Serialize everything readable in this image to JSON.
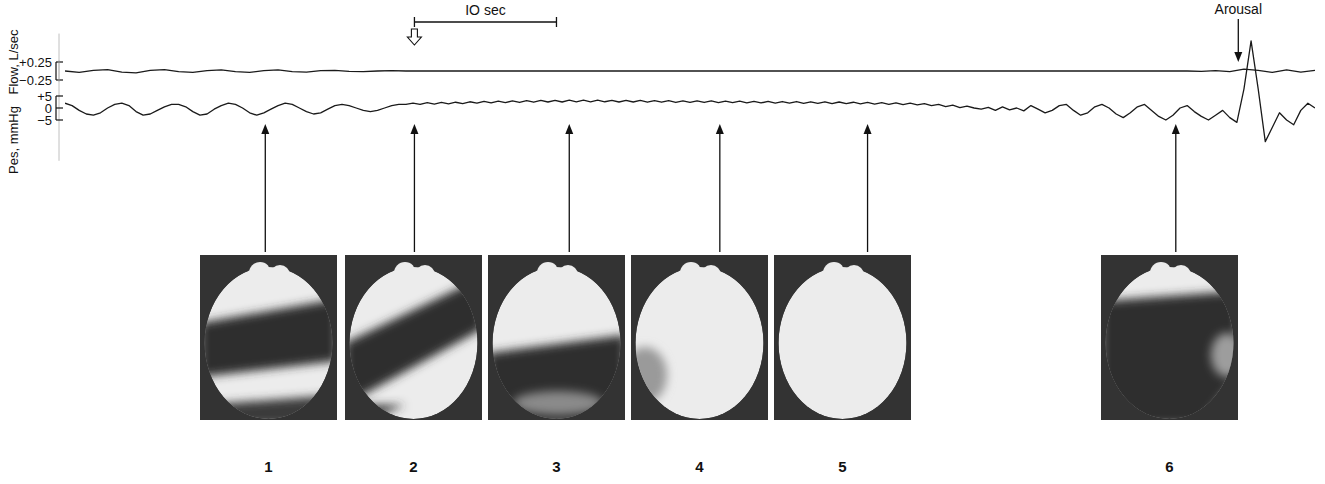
{
  "chart_data": [
    {
      "type": "line",
      "y_label": "Flow, L/sec",
      "color": "#1a1a1a",
      "grid": false,
      "tick_labels": "y",
      "xlim": [
        0,
        88
      ],
      "ylim": [
        -0.3,
        0.3
      ],
      "yticks": [
        {
          "value": 0.25,
          "label": "+0.25"
        },
        {
          "value": -0.25,
          "label": "−0.25"
        }
      ],
      "x": [
        0,
        1,
        2,
        3,
        4,
        5,
        6,
        7,
        8,
        9,
        10,
        11,
        12,
        13,
        14,
        15,
        16,
        17,
        18,
        19,
        20,
        21,
        22,
        23,
        24,
        40,
        60,
        79,
        80,
        81,
        82,
        83,
        84,
        85,
        86,
        87,
        88
      ],
      "values": [
        0,
        -0.04,
        0.02,
        0.04,
        -0.03,
        -0.05,
        0.02,
        0.04,
        -0.02,
        -0.04,
        0.01,
        0.03,
        -0.02,
        -0.04,
        0.01,
        0.03,
        -0.02,
        -0.03,
        0.01,
        0.02,
        -0.01,
        -0.02,
        0,
        0.01,
        0,
        0,
        0,
        0,
        -0.01,
        0.01,
        -0.02,
        0.05,
        0.02,
        -0.04,
        0.03,
        -0.03,
        0.02
      ]
    },
    {
      "type": "line",
      "y_label": "Pes, mmHg",
      "color": "#1a1a1a",
      "grid": false,
      "tick_labels": "y",
      "xlim": [
        0,
        88
      ],
      "ylim": [
        -22,
        31
      ],
      "yticks": [
        {
          "value": 5,
          "label": "+5"
        },
        0,
        {
          "value": -5,
          "label": "−5"
        }
      ],
      "x": [
        0,
        0.5,
        1,
        1.5,
        2,
        2.5,
        3,
        3.5,
        4,
        4.5,
        5,
        5.5,
        6,
        6.5,
        7,
        7.5,
        8,
        8.5,
        9,
        9.5,
        10,
        10.5,
        11,
        11.5,
        12,
        12.5,
        13,
        13.5,
        14,
        14.5,
        15,
        15.5,
        16,
        16.5,
        17,
        17.5,
        18,
        18.5,
        19,
        19.5,
        20,
        20.5,
        21,
        21.5,
        22,
        22.5,
        23,
        23.5,
        24,
        24.5,
        25,
        25.5,
        26,
        26.5,
        27,
        27.5,
        28,
        28.5,
        29,
        29.5,
        30,
        30.5,
        31,
        31.5,
        32,
        32.5,
        33,
        33.5,
        34,
        34.5,
        35,
        35.5,
        36,
        36.5,
        37,
        37.5,
        38,
        38.5,
        39,
        39.5,
        40,
        40.5,
        41,
        41.5,
        42,
        42.5,
        43,
        43.5,
        44,
        44.5,
        45,
        45.5,
        46,
        46.5,
        47,
        47.5,
        48,
        48.5,
        49,
        49.5,
        50,
        50.5,
        51,
        51.5,
        52,
        52.5,
        53,
        53.5,
        54,
        54.5,
        55,
        55.5,
        56,
        56.5,
        57,
        57.5,
        58,
        58.5,
        59,
        59.5,
        60,
        60.5,
        61,
        61.5,
        62,
        62.5,
        63,
        63.5,
        64,
        64.5,
        65,
        65.5,
        66,
        66.5,
        67,
        67.5,
        68,
        68.5,
        69,
        69.5,
        70,
        70.5,
        71,
        71.5,
        72,
        72.5,
        73,
        73.5,
        74,
        74.5,
        75,
        75.5,
        76,
        76.5,
        77,
        77.5,
        78,
        78.5,
        79,
        79.5,
        80,
        80.5,
        81,
        81.5,
        82,
        82.5,
        83,
        83.5,
        84,
        84.5,
        85,
        85.5,
        86,
        86.5,
        87,
        87.5,
        88
      ],
      "values": [
        2,
        1,
        -1,
        -2.5,
        -3,
        -2,
        0,
        1.5,
        2,
        1,
        -1.5,
        -3,
        -2.5,
        -1,
        0.5,
        1.5,
        1.5,
        0.5,
        -1.5,
        -3,
        -2.5,
        -0.5,
        1,
        2,
        1.5,
        0,
        -2,
        -3,
        -2,
        -0.5,
        1,
        2,
        1.5,
        0,
        -1.5,
        -2.5,
        -2,
        -0.5,
        1,
        1.5,
        1,
        0,
        -1,
        -1.5,
        -1,
        0,
        1,
        1.5,
        1.5,
        2,
        1.5,
        2.2,
        1.6,
        2.3,
        1.7,
        2.4,
        1.8,
        2.6,
        2,
        2.8,
        2.1,
        2.9,
        2.2,
        3,
        2.3,
        3.1,
        2.4,
        3.2,
        2.5,
        3.2,
        2.5,
        3.3,
        2.6,
        3.3,
        2.6,
        3.3,
        2.6,
        3.2,
        2.5,
        3.2,
        2.5,
        3.2,
        2.4,
        3.1,
        2.4,
        3.1,
        2.3,
        3,
        2.3,
        3,
        2.3,
        3,
        2.2,
        2.9,
        2.2,
        2.9,
        2.1,
        2.8,
        2.1,
        2.8,
        2,
        2.7,
        2,
        2.7,
        1.9,
        2.6,
        1.9,
        2.6,
        1.8,
        2.5,
        1.8,
        2.4,
        1.7,
        2.3,
        1.6,
        2.2,
        1.5,
        2.1,
        1.4,
        2,
        1.3,
        1.8,
        1,
        1.5,
        0.6,
        1.2,
        0.2,
        0.8,
        0,
        -0.5,
        0.3,
        -1,
        0.5,
        -0.8,
        0,
        -1.2,
        1,
        -0.5,
        -2,
        -1,
        1,
        1.5,
        -1,
        -3,
        -2,
        0.5,
        1.5,
        0,
        -2.5,
        -4,
        -2,
        0.5,
        1.5,
        -1,
        -3.5,
        -5,
        -3,
        0,
        1,
        -1.5,
        -3.5,
        -5,
        -3,
        -1,
        -4,
        -6,
        8,
        28,
        8,
        -14,
        -8,
        -2,
        -5,
        -7,
        -1,
        2,
        0
      ]
    }
  ],
  "scale_bar": {
    "label": "IO sec",
    "start": 24.6,
    "length": 10
  },
  "events": {
    "onset": 24.6,
    "arousal": {
      "label": "Arousal",
      "time": 82.6
    }
  },
  "images": [
    {
      "label": "1",
      "time": 14.1
    },
    {
      "label": "2",
      "time": 24.6
    },
    {
      "label": "3",
      "time": 35.5
    },
    {
      "label": "4",
      "time": 46.1
    },
    {
      "label": "5",
      "time": 56.5
    },
    {
      "label": "6",
      "time": 78.2
    }
  ]
}
